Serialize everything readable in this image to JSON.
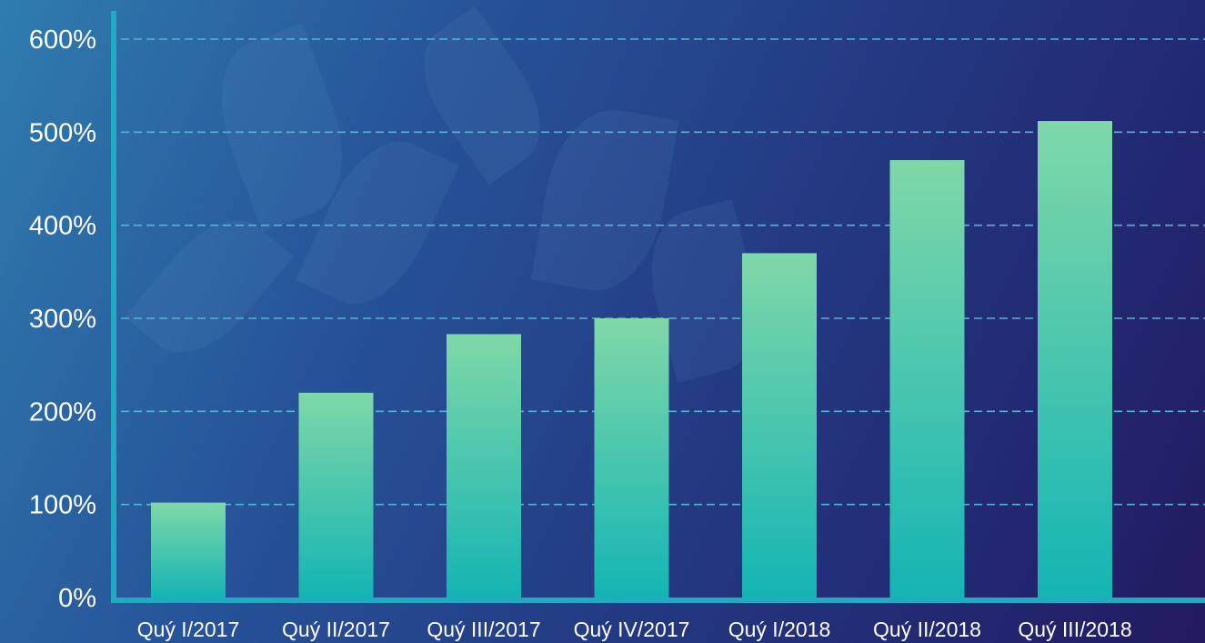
{
  "chart_data": {
    "type": "bar",
    "title": "",
    "xlabel": "",
    "ylabel": "",
    "categories": [
      "Quý I/2017",
      "Quý II/2017",
      "Quý III/2017",
      "Quý IV/2017",
      "Quý I/2018",
      "Quý II/2018",
      "Quý III/2018"
    ],
    "values": [
      102,
      220,
      283,
      300,
      370,
      470,
      512
    ],
    "unit": "%",
    "ylim": [
      0,
      600
    ],
    "yticks": [
      0,
      100,
      200,
      300,
      400,
      500,
      600
    ],
    "ytick_labels": [
      "0%",
      "100%",
      "200%",
      "300%",
      "400%",
      "500%",
      "600%"
    ],
    "grid": true,
    "legend": "none",
    "colors": {
      "bar_top": "#7fd8a8",
      "bar_bottom": "#14b4b4",
      "axis": "#22a9c4",
      "grid": "#4fb8d0",
      "text": "#ffffff"
    }
  }
}
